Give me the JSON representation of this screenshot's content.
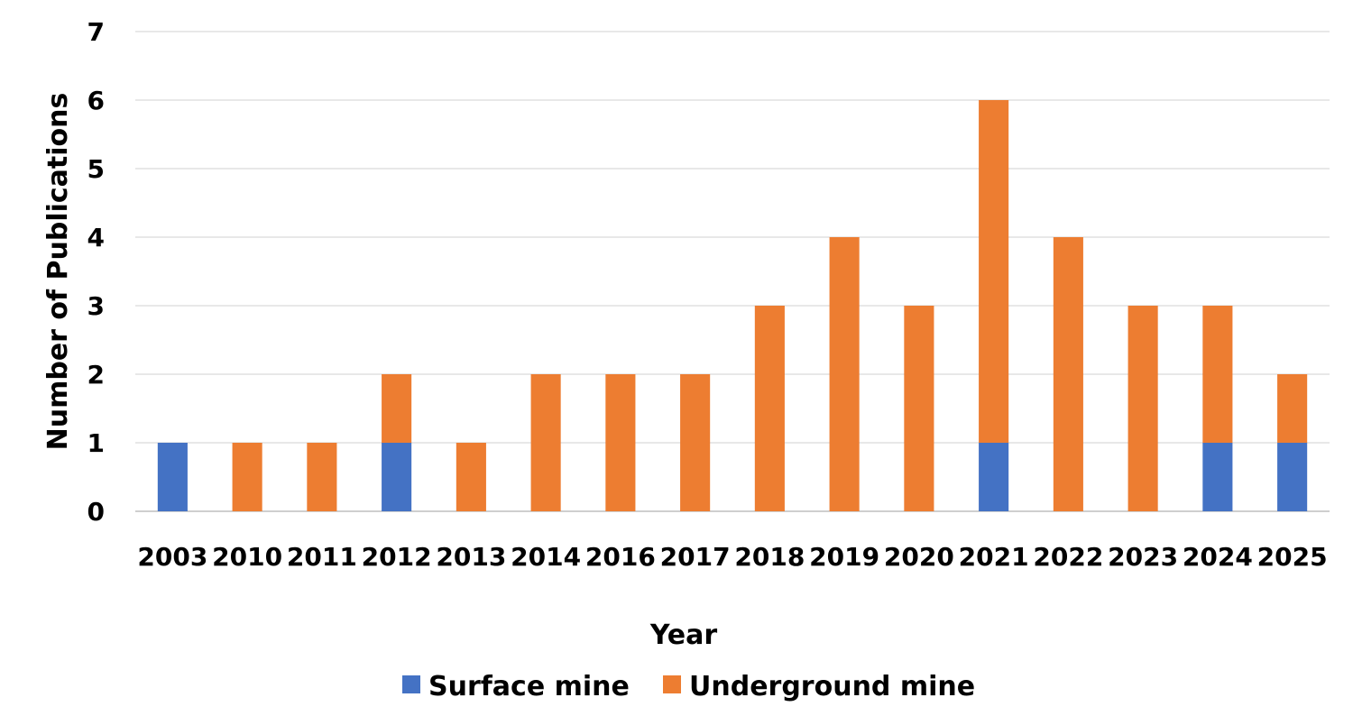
{
  "chart_data": {
    "type": "bar",
    "stacked": true,
    "title": "",
    "xlabel": "Year",
    "ylabel": "Number of  Publications",
    "ylim": [
      0,
      7
    ],
    "yticks": [
      0,
      1,
      2,
      3,
      4,
      5,
      6,
      7
    ],
    "grid": true,
    "legend_position": "bottom",
    "categories": [
      "2003",
      "2010",
      "2011",
      "2012",
      "2013",
      "2014",
      "2016",
      "2017",
      "2018",
      "2019",
      "2020",
      "2021",
      "2022",
      "2023",
      "2024",
      "2025"
    ],
    "series": [
      {
        "name": "Surface mine",
        "color": "#4472C4",
        "values": [
          1,
          0,
          0,
          1,
          0,
          0,
          0,
          0,
          0,
          0,
          0,
          1,
          0,
          0,
          1,
          1
        ]
      },
      {
        "name": "Underground mine",
        "color": "#ED7D31",
        "values": [
          0,
          1,
          1,
          1,
          1,
          2,
          2,
          2,
          3,
          4,
          3,
          5,
          4,
          3,
          2,
          1
        ]
      }
    ]
  },
  "colors": {
    "grid": "#d9d9d9",
    "axis": "#bfbfbf"
  }
}
